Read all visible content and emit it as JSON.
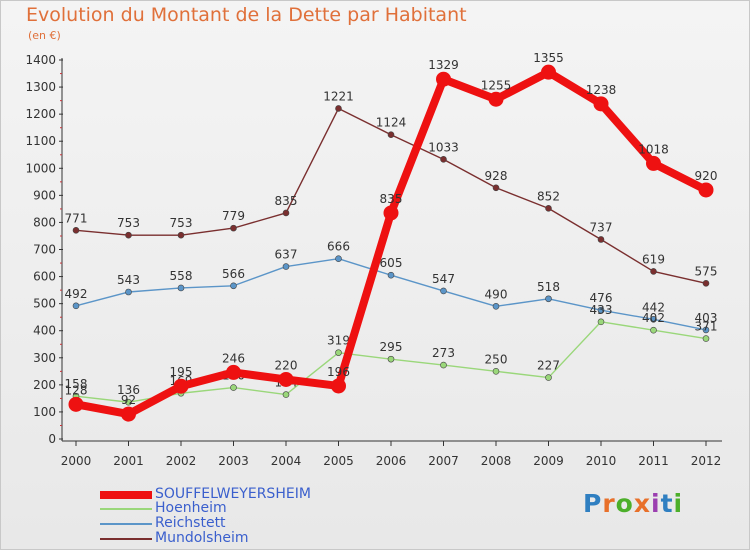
{
  "header": {
    "title": "Evolution du Montant de la Dette par Habitant",
    "subtitle": "(en €)"
  },
  "logo": {
    "text": "Proxiti",
    "colors": [
      "#2f7fc1",
      "#e8702a",
      "#4caf2a",
      "#e8702a",
      "#9b3fb0",
      "#2f7fc1",
      "#4caf2a"
    ]
  },
  "chart_data": {
    "type": "line",
    "categories": [
      "2000",
      "2001",
      "2002",
      "2003",
      "2004",
      "2005",
      "2006",
      "2007",
      "2008",
      "2009",
      "2010",
      "2011",
      "2012"
    ],
    "ylim": [
      0,
      1400
    ],
    "yticks": [
      0,
      100,
      200,
      300,
      400,
      500,
      600,
      700,
      800,
      900,
      1000,
      1100,
      1200,
      1300,
      1400
    ],
    "grid": false,
    "legend": "bottom-left",
    "series": [
      {
        "name": "Mundolsheim",
        "color": "#7a2f2f",
        "values": [
          771,
          753,
          753,
          779,
          835,
          1221,
          1124,
          1033,
          928,
          852,
          737,
          619,
          575
        ]
      },
      {
        "name": "Reichstett",
        "color": "#5b95c8",
        "values": [
          492,
          543,
          558,
          566,
          637,
          666,
          605,
          547,
          490,
          518,
          476,
          442,
          403
        ]
      },
      {
        "name": "Hoenheim",
        "color": "#9ad77a",
        "values": [
          158,
          136,
          169,
          190,
          164,
          319,
          295,
          273,
          250,
          227,
          433,
          402,
          371
        ]
      },
      {
        "name": "SOUFFELWEYERSHEIM",
        "color": "#ee1111",
        "values": [
          128,
          92,
          195,
          246,
          220,
          196,
          835,
          1329,
          1255,
          1355,
          1238,
          1018,
          920
        ]
      }
    ]
  }
}
